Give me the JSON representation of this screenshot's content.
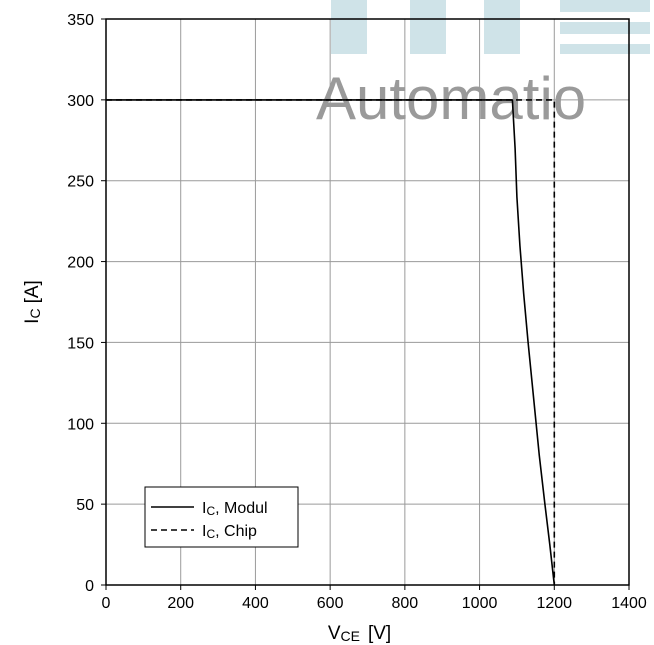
{
  "watermark": {
    "text": "Automatio",
    "text_color": "#9a9a9a",
    "block_color": "#cfe3e8"
  },
  "chart_data": {
    "type": "line",
    "title": "",
    "xlabel": {
      "main": "V",
      "sub": "CE",
      "unit": "[V]"
    },
    "ylabel": {
      "main": "I",
      "sub": "C",
      "unit": "[A]"
    },
    "xlim": [
      0,
      1400
    ],
    "ylim": [
      0,
      350
    ],
    "xticks": [
      0,
      200,
      400,
      600,
      800,
      1000,
      1200,
      1400
    ],
    "yticks": [
      0,
      50,
      100,
      150,
      200,
      250,
      300,
      350
    ],
    "grid": true,
    "legend_position": "bottom-left",
    "series": [
      {
        "name_main": "I",
        "name_sub": "C",
        "name_rest": ", Modul",
        "style": "solid",
        "color": "#000000",
        "x": [
          0,
          1088,
          1095,
          1100,
          1108,
          1118,
          1130,
          1145,
          1160,
          1175,
          1188,
          1200
        ],
        "y": [
          300,
          300,
          270,
          240,
          210,
          180,
          150,
          115,
          80,
          50,
          25,
          0
        ]
      },
      {
        "name_main": "I",
        "name_sub": "C",
        "name_rest": ", Chip",
        "style": "dashed",
        "color": "#000000",
        "x": [
          0,
          1200,
          1200
        ],
        "y": [
          300,
          300,
          0
        ]
      }
    ]
  }
}
